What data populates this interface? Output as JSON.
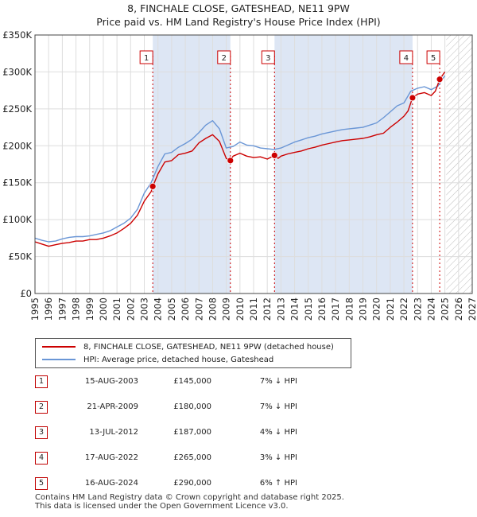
{
  "title_line1": "8, FINCHALE CLOSE, GATESHEAD, NE11 9PW",
  "title_line2": "Price paid vs. HM Land Registry's House Price Index (HPI)",
  "colors": {
    "price": "#cc0000",
    "hpi": "#6a96d6",
    "band": "#dde6f4",
    "grid": "#dddddd",
    "marker": "#cc0000"
  },
  "chart_data": {
    "type": "line",
    "title": "8, FINCHALE CLOSE, GATESHEAD, NE11 9PW",
    "subtitle": "Price paid vs. HM Land Registry's House Price Index (HPI)",
    "xlim": [
      1995,
      2027
    ],
    "ylim": [
      0,
      350000
    ],
    "grid": true,
    "y_ticks": [
      0,
      50000,
      100000,
      150000,
      200000,
      250000,
      300000,
      350000
    ],
    "y_tick_labels": [
      "£0",
      "£50K",
      "£100K",
      "£150K",
      "£200K",
      "£250K",
      "£300K",
      "£350K"
    ],
    "x_ticks": [
      "1995",
      "1996",
      "1997",
      "1998",
      "1999",
      "2000",
      "2001",
      "2002",
      "2003",
      "2004",
      "2005",
      "2006",
      "2007",
      "2008",
      "2009",
      "2010",
      "2011",
      "2012",
      "2013",
      "2014",
      "2015",
      "2016",
      "2017",
      "2018",
      "2019",
      "2020",
      "2021",
      "2022",
      "2023",
      "2024",
      "2025",
      "2026",
      "2027"
    ],
    "forecast_start": 2025.1,
    "series": [
      {
        "name": "8, FINCHALE CLOSE, GATESHEAD, NE11 9PW (detached house)",
        "x": [
          1995.0,
          1995.5,
          1996.0,
          1996.5,
          1997.0,
          1997.5,
          1998.0,
          1998.5,
          1999.0,
          1999.5,
          2000.0,
          2000.5,
          2001.0,
          2001.5,
          2002.0,
          2002.5,
          2003.0,
          2003.5,
          2003.62,
          2004.0,
          2004.5,
          2005.0,
          2005.5,
          2006.0,
          2006.5,
          2007.0,
          2007.5,
          2008.0,
          2008.5,
          2009.0,
          2009.3,
          2009.5,
          2010.0,
          2010.5,
          2011.0,
          2011.5,
          2012.0,
          2012.53,
          2012.8,
          2013.0,
          2013.5,
          2014.0,
          2014.5,
          2015.0,
          2015.5,
          2016.0,
          2016.5,
          2017.0,
          2017.5,
          2018.0,
          2018.5,
          2019.0,
          2019.5,
          2020.0,
          2020.5,
          2021.0,
          2021.5,
          2022.0,
          2022.3,
          2022.63,
          2023.0,
          2023.5,
          2024.0,
          2024.3,
          2024.62,
          2025.0
        ],
        "y": [
          70000,
          67000,
          64000,
          66000,
          68000,
          69000,
          71000,
          71000,
          73000,
          73000,
          75000,
          78000,
          82000,
          88000,
          95000,
          106000,
          125000,
          138000,
          145000,
          162000,
          178000,
          180000,
          188000,
          190000,
          193000,
          204000,
          210000,
          215000,
          206000,
          183000,
          180000,
          186000,
          190000,
          186000,
          184000,
          185000,
          182000,
          187000,
          183000,
          186000,
          189000,
          191000,
          193000,
          196000,
          198000,
          201000,
          203000,
          205000,
          207000,
          208000,
          209000,
          210000,
          212000,
          215000,
          217000,
          225000,
          232000,
          240000,
          247000,
          265000,
          270000,
          272000,
          268000,
          274000,
          290000,
          300000
        ]
      },
      {
        "name": "HPI: Average price, detached house, Gateshead",
        "x": [
          1995.0,
          1995.5,
          1996.0,
          1996.5,
          1997.0,
          1997.5,
          1998.0,
          1998.5,
          1999.0,
          1999.5,
          2000.0,
          2000.5,
          2001.0,
          2001.5,
          2002.0,
          2002.5,
          2003.0,
          2003.5,
          2004.0,
          2004.5,
          2005.0,
          2005.5,
          2006.0,
          2006.5,
          2007.0,
          2007.5,
          2008.0,
          2008.5,
          2009.0,
          2009.5,
          2010.0,
          2010.5,
          2011.0,
          2011.5,
          2012.0,
          2012.5,
          2013.0,
          2013.5,
          2014.0,
          2014.5,
          2015.0,
          2015.5,
          2016.0,
          2016.5,
          2017.0,
          2017.5,
          2018.0,
          2018.5,
          2019.0,
          2019.5,
          2020.0,
          2020.5,
          2021.0,
          2021.5,
          2022.0,
          2022.5,
          2023.0,
          2023.5,
          2024.0,
          2024.5,
          2025.0
        ],
        "y": [
          75000,
          72000,
          70000,
          71000,
          74000,
          76000,
          77000,
          77000,
          78000,
          80000,
          82000,
          85000,
          90000,
          95000,
          102000,
          114000,
          136000,
          150000,
          172000,
          189000,
          191000,
          198000,
          203000,
          209000,
          218000,
          228000,
          234000,
          223000,
          197000,
          199000,
          205000,
          201000,
          200000,
          197000,
          196000,
          195000,
          197000,
          201000,
          205000,
          208000,
          211000,
          213000,
          216000,
          218000,
          220000,
          222000,
          223000,
          224000,
          225000,
          228000,
          231000,
          238000,
          246000,
          254000,
          258000,
          274000,
          278000,
          280000,
          276000,
          281000,
          295000
        ]
      }
    ],
    "markers": [
      {
        "label": "1",
        "x": 2003.62,
        "y": 145000
      },
      {
        "label": "2",
        "x": 2009.3,
        "y": 180000
      },
      {
        "label": "3",
        "x": 2012.53,
        "y": 187000
      },
      {
        "label": "4",
        "x": 2022.63,
        "y": 265000
      },
      {
        "label": "5",
        "x": 2024.62,
        "y": 290000
      }
    ],
    "shaded_spans": [
      [
        2003.62,
        2009.3
      ],
      [
        2012.53,
        2022.63
      ]
    ]
  },
  "legend": {
    "price_label": "8, FINCHALE CLOSE, GATESHEAD, NE11 9PW (detached house)",
    "hpi_label": "HPI: Average price, detached house, Gateshead"
  },
  "sales": [
    {
      "num": "1",
      "date": "15-AUG-2003",
      "price": "£145,000",
      "hpi": "7% ↓ HPI"
    },
    {
      "num": "2",
      "date": "21-APR-2009",
      "price": "£180,000",
      "hpi": "7% ↓ HPI"
    },
    {
      "num": "3",
      "date": "13-JUL-2012",
      "price": "£187,000",
      "hpi": "4% ↓ HPI"
    },
    {
      "num": "4",
      "date": "17-AUG-2022",
      "price": "£265,000",
      "hpi": "3% ↓ HPI"
    },
    {
      "num": "5",
      "date": "16-AUG-2024",
      "price": "£290,000",
      "hpi": "6% ↑ HPI"
    }
  ],
  "footer": {
    "line1": "Contains HM Land Registry data © Crown copyright and database right 2025.",
    "line2": "This data is licensed under the Open Government Licence v3.0."
  }
}
